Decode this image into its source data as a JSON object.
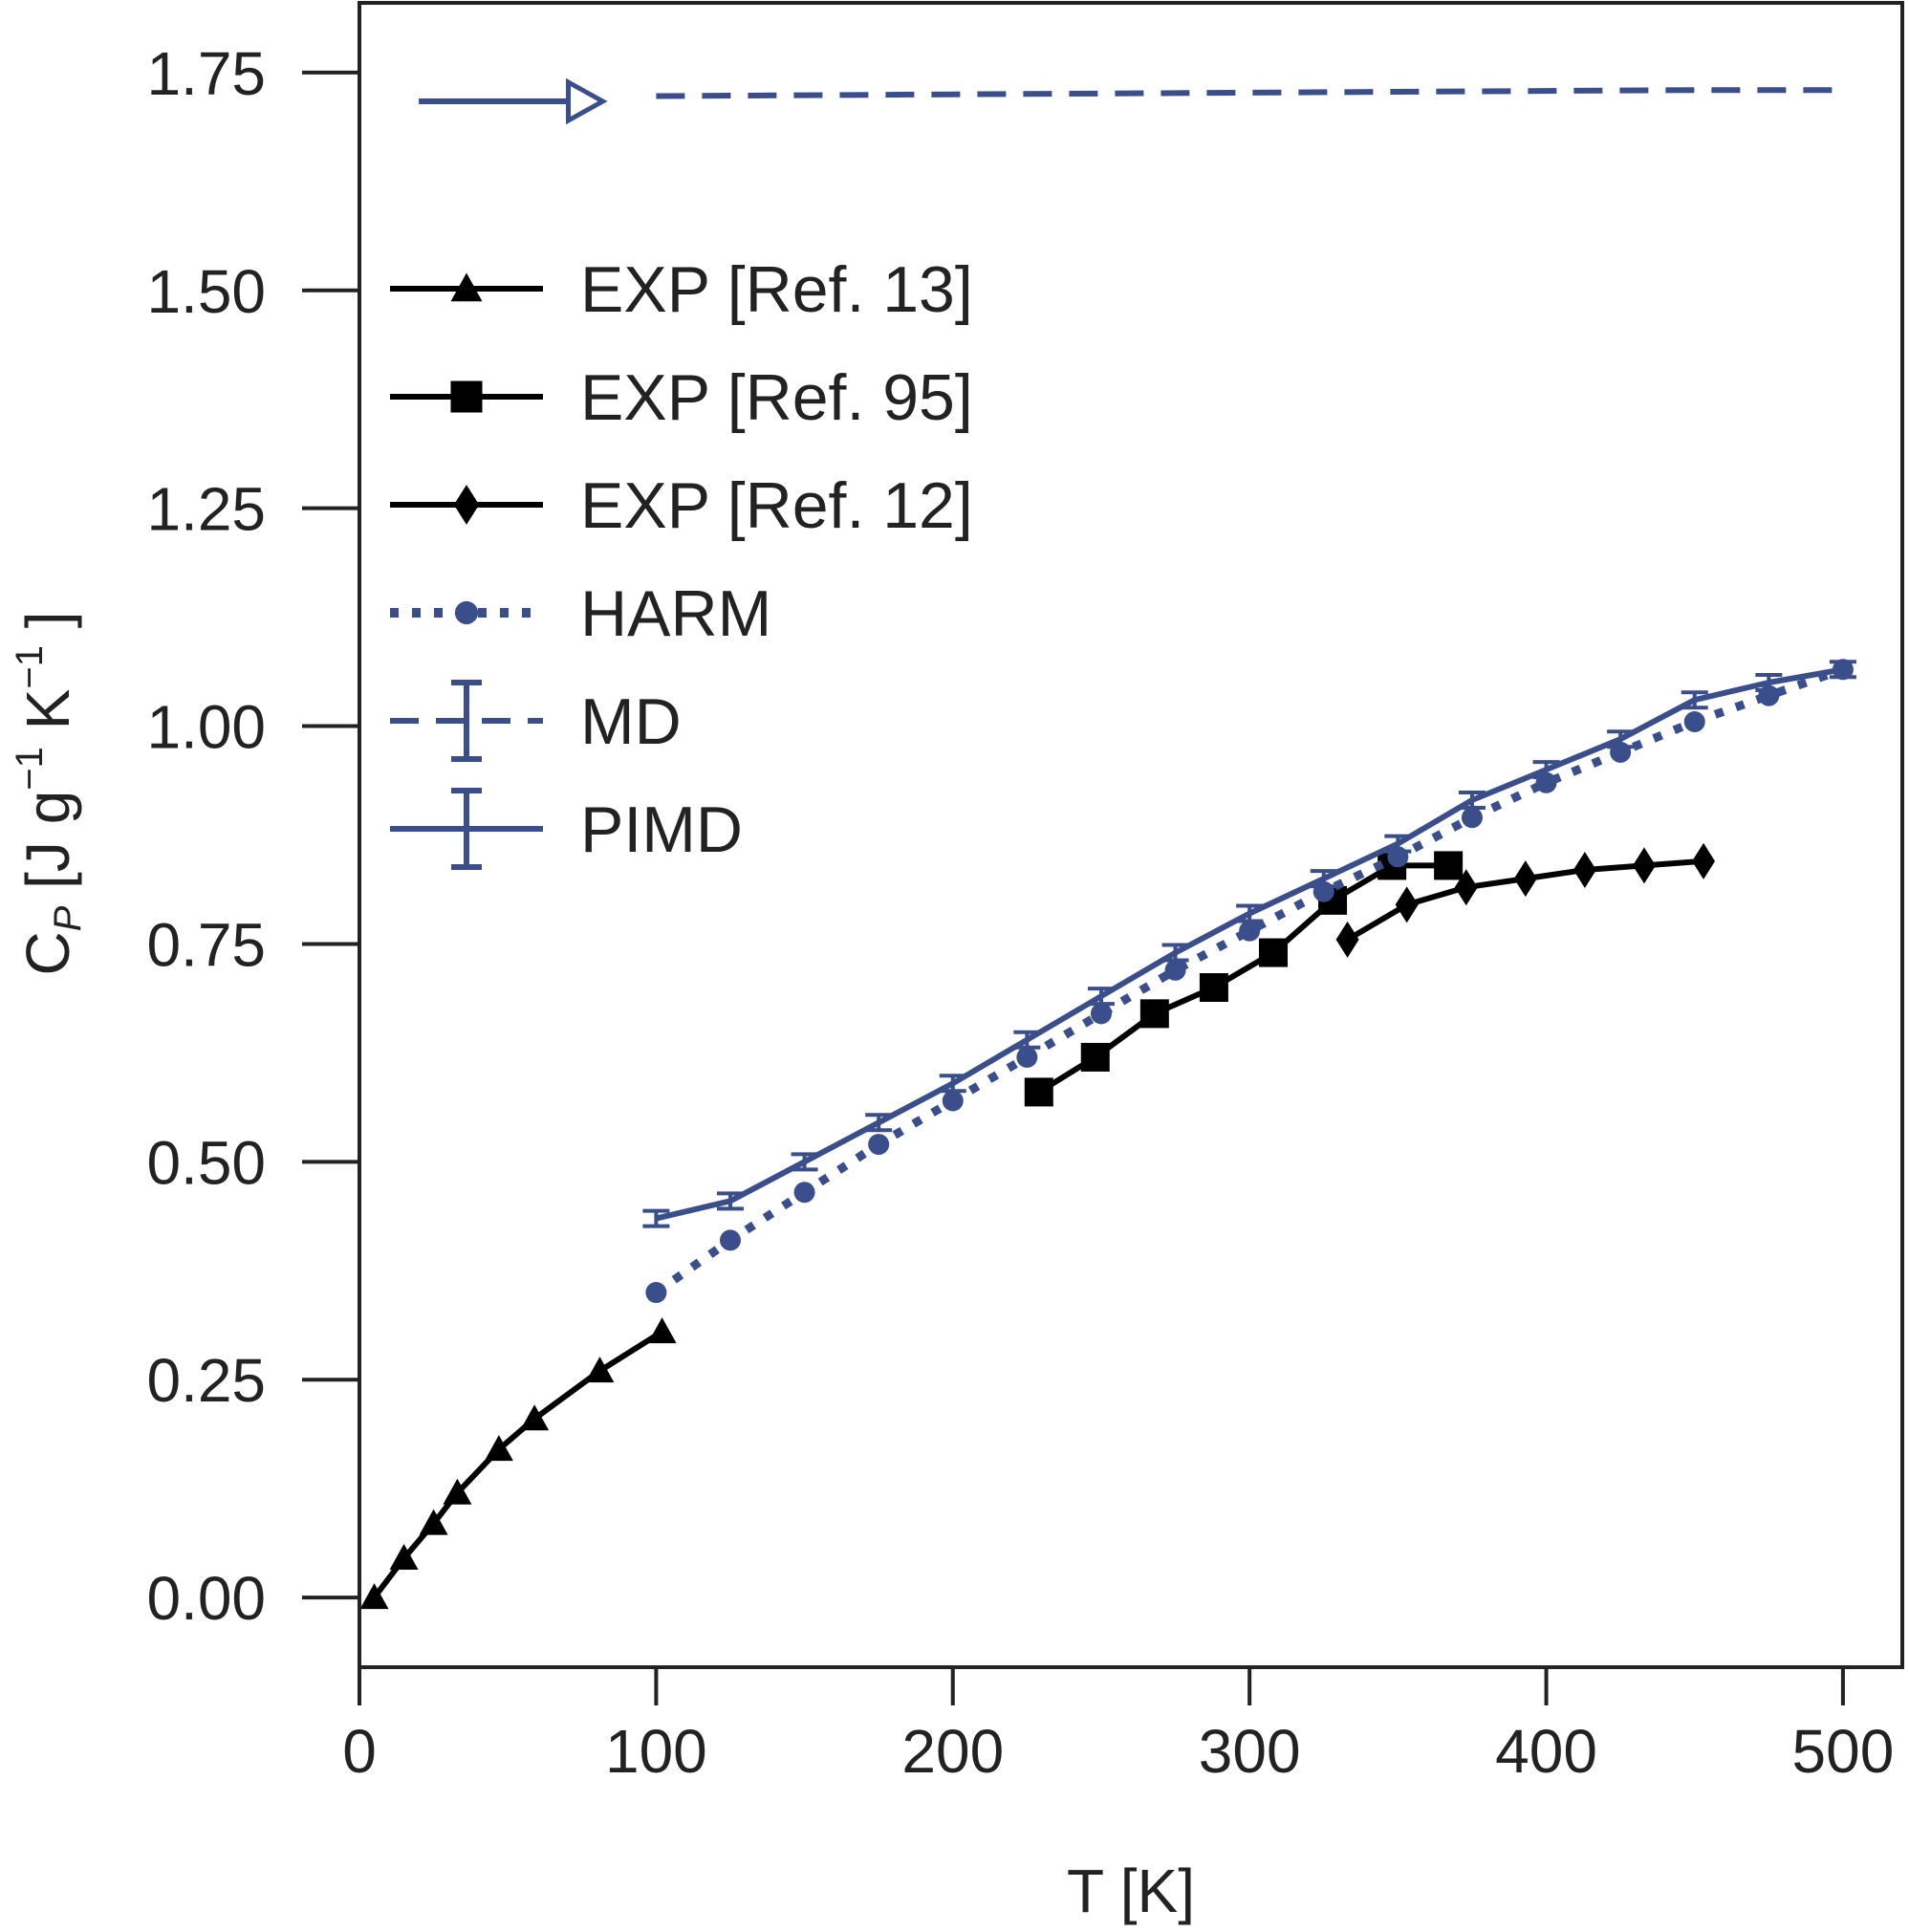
{
  "chart_data": {
    "type": "line",
    "xlabel": "T [K]",
    "ylabel": {
      "base": "C",
      "sub": "P",
      "rest1": " [J g",
      "sup1": "−1",
      "rest2": " K",
      "sup2": "−1",
      "rest3": " ]"
    },
    "xlim": [
      0,
      520
    ],
    "ylim": [
      -0.08,
      1.83
    ],
    "xticks": [
      {
        "v": 0,
        "label": "0"
      },
      {
        "v": 100,
        "label": "100"
      },
      {
        "v": 200,
        "label": "200"
      },
      {
        "v": 300,
        "label": "300"
      },
      {
        "v": 400,
        "label": "400"
      },
      {
        "v": 500,
        "label": "500"
      }
    ],
    "yticks": [
      {
        "v": 0.0,
        "label": "0.00"
      },
      {
        "v": 0.25,
        "label": "0.25"
      },
      {
        "v": 0.5,
        "label": "0.50"
      },
      {
        "v": 0.75,
        "label": "0.75"
      },
      {
        "v": 1.0,
        "label": "1.00"
      },
      {
        "v": 1.25,
        "label": "1.25"
      },
      {
        "v": 1.5,
        "label": "1.50"
      },
      {
        "v": 1.75,
        "label": "1.75"
      }
    ],
    "grid": false,
    "legend_position": "upper-left",
    "colors": {
      "black": "#000000",
      "blue": "#3a4e8c"
    },
    "series": [
      {
        "name": "EXP [Ref. 13]",
        "color": "#000000",
        "style": "solid",
        "marker": "triangle",
        "x": [
          5,
          15,
          25,
          33,
          47,
          59,
          81,
          102
        ],
        "y": [
          0.0,
          0.045,
          0.085,
          0.12,
          0.17,
          0.205,
          0.26,
          0.305
        ]
      },
      {
        "name": "EXP [Ref. 95]",
        "color": "#000000",
        "style": "solid",
        "marker": "square",
        "x": [
          229,
          248,
          268,
          288,
          308,
          328,
          348,
          367
        ],
        "y": [
          0.58,
          0.62,
          0.67,
          0.7,
          0.74,
          0.8,
          0.84,
          0.84
        ]
      },
      {
        "name": "EXP [Ref. 12]",
        "color": "#000000",
        "style": "solid",
        "marker": "diamond",
        "x": [
          333,
          353,
          373,
          393,
          413,
          433,
          453
        ],
        "y": [
          0.755,
          0.795,
          0.815,
          0.825,
          0.835,
          0.84,
          0.845
        ]
      },
      {
        "name": "HARM",
        "color": "#3a4e8c",
        "style": "dotted",
        "marker": "circle",
        "x": [
          100,
          125,
          150,
          175,
          200,
          225,
          250,
          275,
          300,
          325,
          350,
          375,
          400,
          425,
          450,
          475,
          500
        ],
        "y": [
          0.35,
          0.41,
          0.465,
          0.52,
          0.57,
          0.62,
          0.67,
          0.72,
          0.765,
          0.81,
          0.85,
          0.895,
          0.935,
          0.97,
          1.005,
          1.035,
          1.065
        ]
      },
      {
        "name": "MD",
        "color": "#3a4e8c",
        "style": "dashed",
        "marker": "none",
        "x": [
          100,
          150,
          200,
          250,
          300,
          350,
          400,
          450,
          500
        ],
        "y": [
          1.723,
          1.724,
          1.725,
          1.726,
          1.727,
          1.728,
          1.729,
          1.73,
          1.73
        ]
      },
      {
        "name": "PIMD",
        "color": "#3a4e8c",
        "style": "solid",
        "marker": "errorbar",
        "x": [
          100,
          125,
          150,
          175,
          200,
          225,
          250,
          275,
          300,
          325,
          350,
          375,
          400,
          425,
          450,
          475,
          500
        ],
        "y": [
          0.435,
          0.455,
          0.5,
          0.545,
          0.59,
          0.64,
          0.69,
          0.74,
          0.785,
          0.825,
          0.865,
          0.915,
          0.95,
          0.985,
          1.03,
          1.05,
          1.065
        ]
      }
    ],
    "annotation": {
      "type": "arrow",
      "color": "#3a4e8c",
      "from": [
        20,
        1.717
      ],
      "to": [
        82,
        1.717
      ]
    }
  }
}
